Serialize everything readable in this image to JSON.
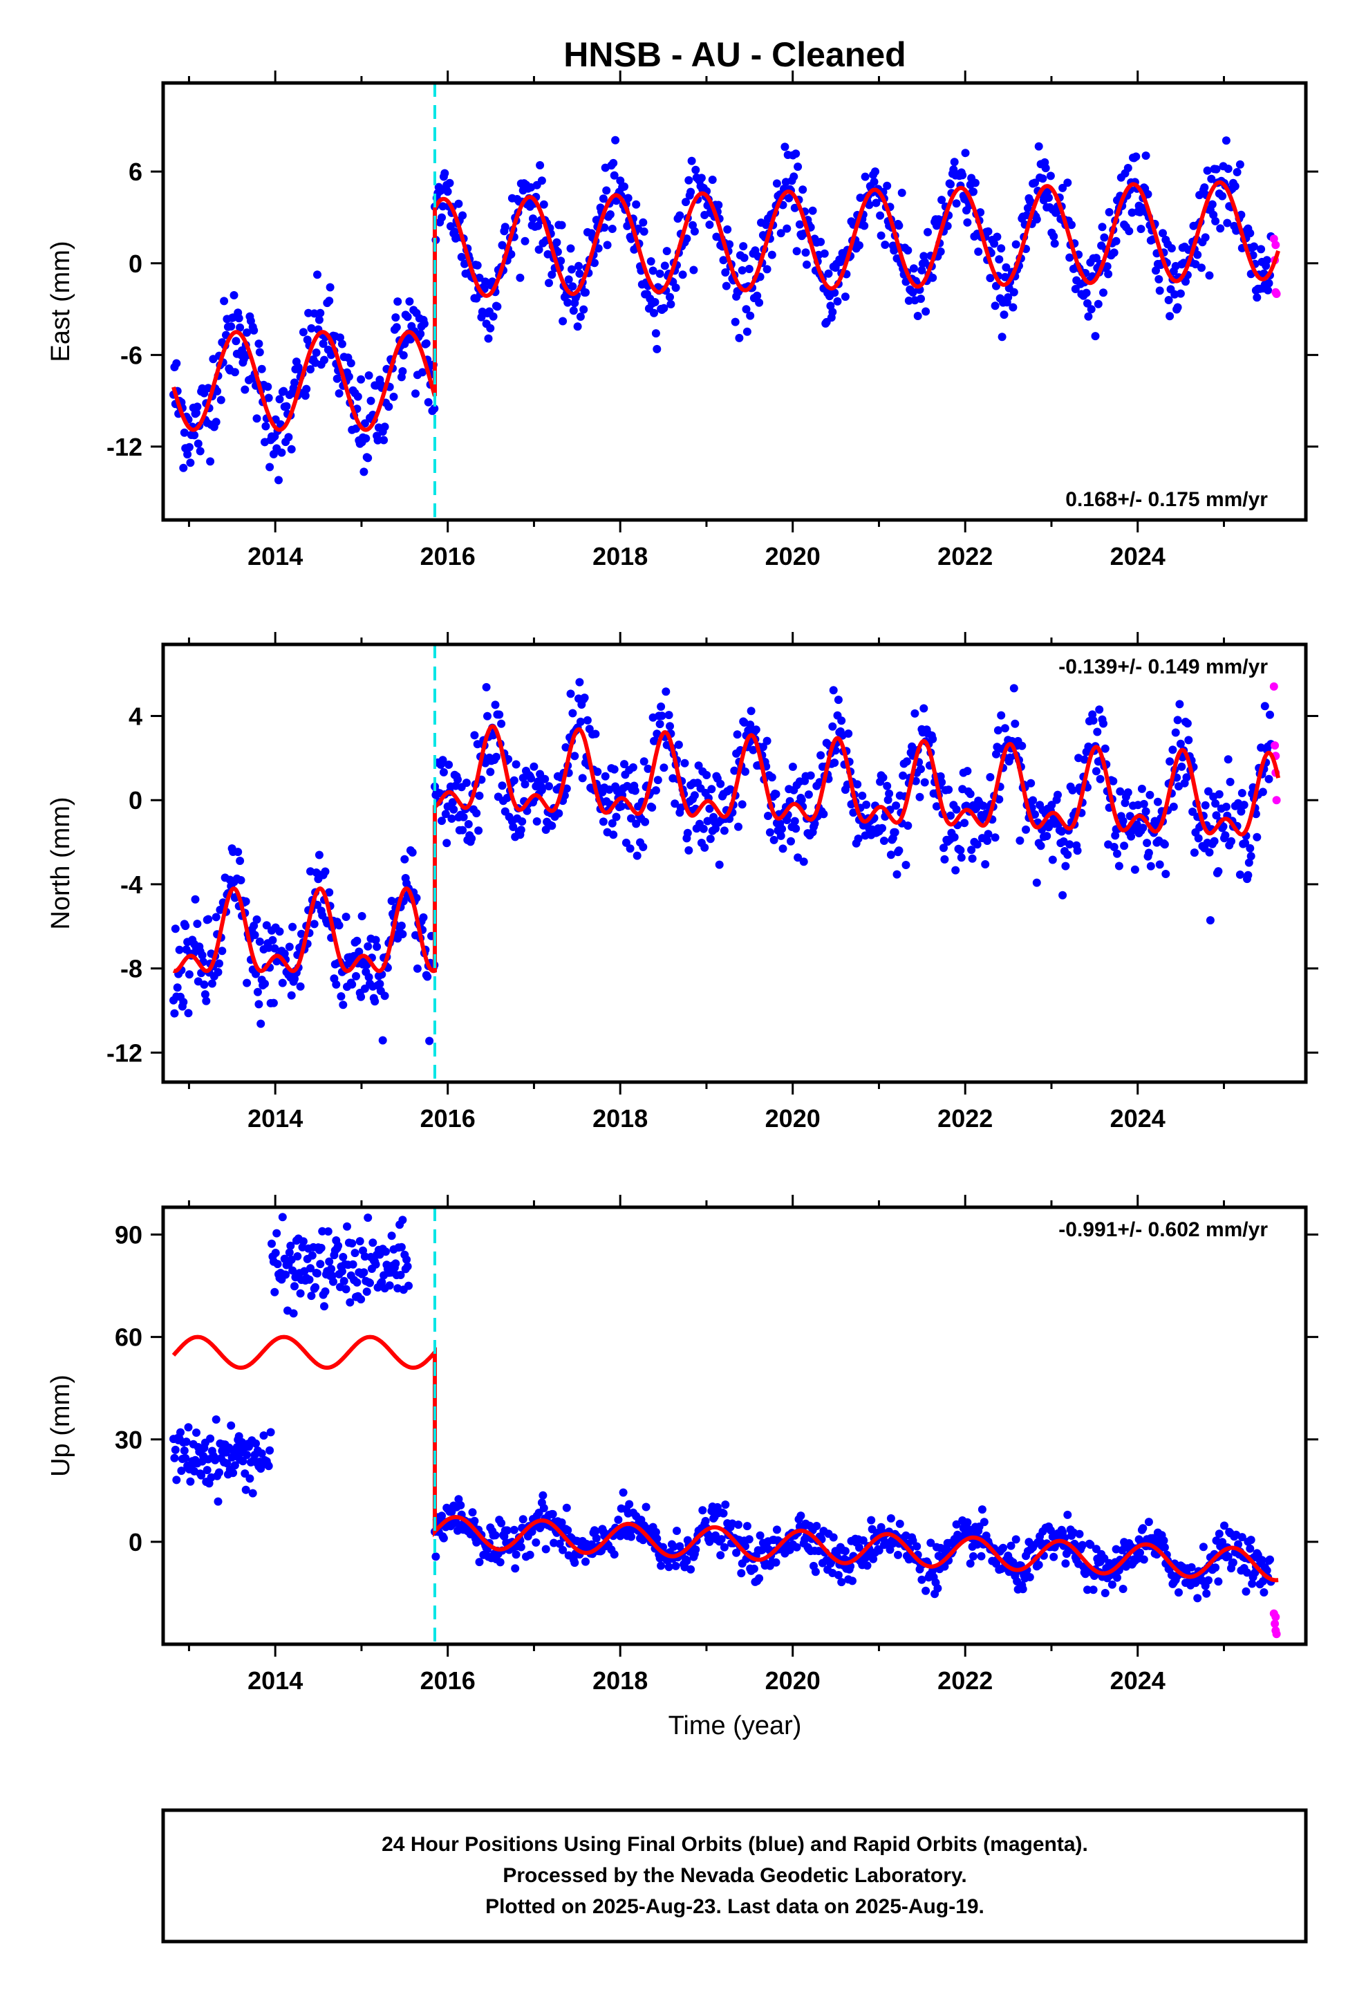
{
  "title": "HNSB  - AU - Cleaned",
  "colors": {
    "final_orbits": "#0000ff",
    "rapid_orbits": "#ff00ff",
    "model": "#ff0000",
    "equipment_change": "#00e5e5",
    "frame": "#000000"
  },
  "xaxis": {
    "label": "Time (year)",
    "range": [
      2012.7,
      2025.95
    ],
    "ticks": [
      "2014",
      "2016",
      "2018",
      "2020",
      "2022",
      "2024"
    ],
    "tick_values": [
      2014,
      2016,
      2018,
      2020,
      2022,
      2024
    ]
  },
  "equipment_change_year": 2015.85,
  "footer": {
    "line1": "24 Hour Positions Using Final Orbits (blue) and Rapid Orbits (magenta).",
    "line2": "Processed by the Nevada Geodetic Laboratory.",
    "line3": "Plotted on 2025-Aug-23. Last data on 2025-Aug-19."
  },
  "chart_data": [
    {
      "type": "scatter",
      "component": "east",
      "ylabel": "East (mm)",
      "ylim": [
        -16.8,
        11.8
      ],
      "yticks": [
        "6",
        "0",
        "-6",
        "-12"
      ],
      "ytick_values": [
        6,
        0,
        -6,
        -12
      ],
      "rate": "0.168+/- 0.175 mm/yr",
      "rate_position": "bottom-right",
      "data_start": 2012.82,
      "data_end": 2025.55,
      "segments": [
        {
          "start": 2012.82,
          "end": 2015.85,
          "model_mean": -7.7,
          "model_amp": 3.2,
          "model_phase": 0.55,
          "model_semi_amp": 0.0,
          "scatter": 1.6
        },
        {
          "start": 2015.85,
          "end": 2025.63,
          "model_mean": 1.0,
          "model_amp": 3.2,
          "model_phase": 0.95,
          "model_semi_amp": 0.0,
          "scatter": 1.3,
          "mean_trend": 0.12
        }
      ],
      "rapid_points": [
        [
          2025.58,
          1.6
        ],
        [
          2025.59,
          0.2
        ],
        [
          2025.6,
          -1.9
        ],
        [
          2025.61,
          -2.0
        ],
        [
          2025.6,
          1.2
        ]
      ]
    },
    {
      "type": "scatter",
      "component": "north",
      "ylabel": "North (mm)",
      "ylim": [
        -13.4,
        7.4
      ],
      "yticks": [
        "4",
        "0",
        "-4",
        "-8",
        "-12"
      ],
      "ytick_values": [
        4,
        0,
        -4,
        -8,
        -12
      ],
      "rate": "-0.139+/- 0.149 mm/yr",
      "rate_position": "top-right",
      "data_start": 2012.82,
      "data_end": 2025.55,
      "segments": [
        {
          "start": 2012.82,
          "end": 2015.85,
          "model_mean": -6.8,
          "model_amp": 1.6,
          "model_phase": 0.52,
          "model_semi_amp": 1.0,
          "scatter": 1.2
        },
        {
          "start": 2015.85,
          "end": 2025.63,
          "model_mean": 1.0,
          "model_amp": 1.6,
          "model_phase": 0.52,
          "model_semi_amp": 1.0,
          "scatter": 1.1,
          "mean_trend": -0.14
        }
      ],
      "rapid_points": [
        [
          2025.58,
          5.4
        ],
        [
          2025.59,
          2.6
        ],
        [
          2025.6,
          1.3
        ],
        [
          2025.61,
          0.0
        ],
        [
          2025.6,
          2.1
        ]
      ]
    },
    {
      "type": "scatter",
      "component": "up",
      "ylabel": "Up (mm)",
      "ylim": [
        -30,
        98
      ],
      "yticks": [
        "90",
        "60",
        "30",
        "0"
      ],
      "ytick_values": [
        90,
        60,
        30,
        0
      ],
      "rate": "-0.991+/- 0.602 mm/yr",
      "rate_position": "top-right",
      "data_start": 2012.82,
      "data_end": 2025.55,
      "segments": [
        {
          "start": 2012.82,
          "end": 2015.85,
          "model_mean": 55.5,
          "model_amp": 4.5,
          "model_phase": 0.1,
          "model_semi_amp": 0.0,
          "scatter": 3.0
        },
        {
          "start": 2015.85,
          "end": 2025.63,
          "model_mean": 3.0,
          "model_amp": 4.5,
          "model_phase": 0.1,
          "model_semi_amp": 0.0,
          "scatter": 3.2,
          "mean_trend": -1.0
        }
      ],
      "clusters": [
        {
          "start": 2012.82,
          "end": 2013.95,
          "mean": 25.0,
          "scatter": 4.5
        },
        {
          "start": 2013.95,
          "end": 2015.55,
          "mean": 80.0,
          "scatter": 5.5
        }
      ],
      "rapid_points": [
        [
          2025.58,
          -21
        ],
        [
          2025.59,
          -24
        ],
        [
          2025.6,
          -26
        ],
        [
          2025.61,
          -27
        ],
        [
          2025.6,
          -22
        ]
      ]
    }
  ]
}
